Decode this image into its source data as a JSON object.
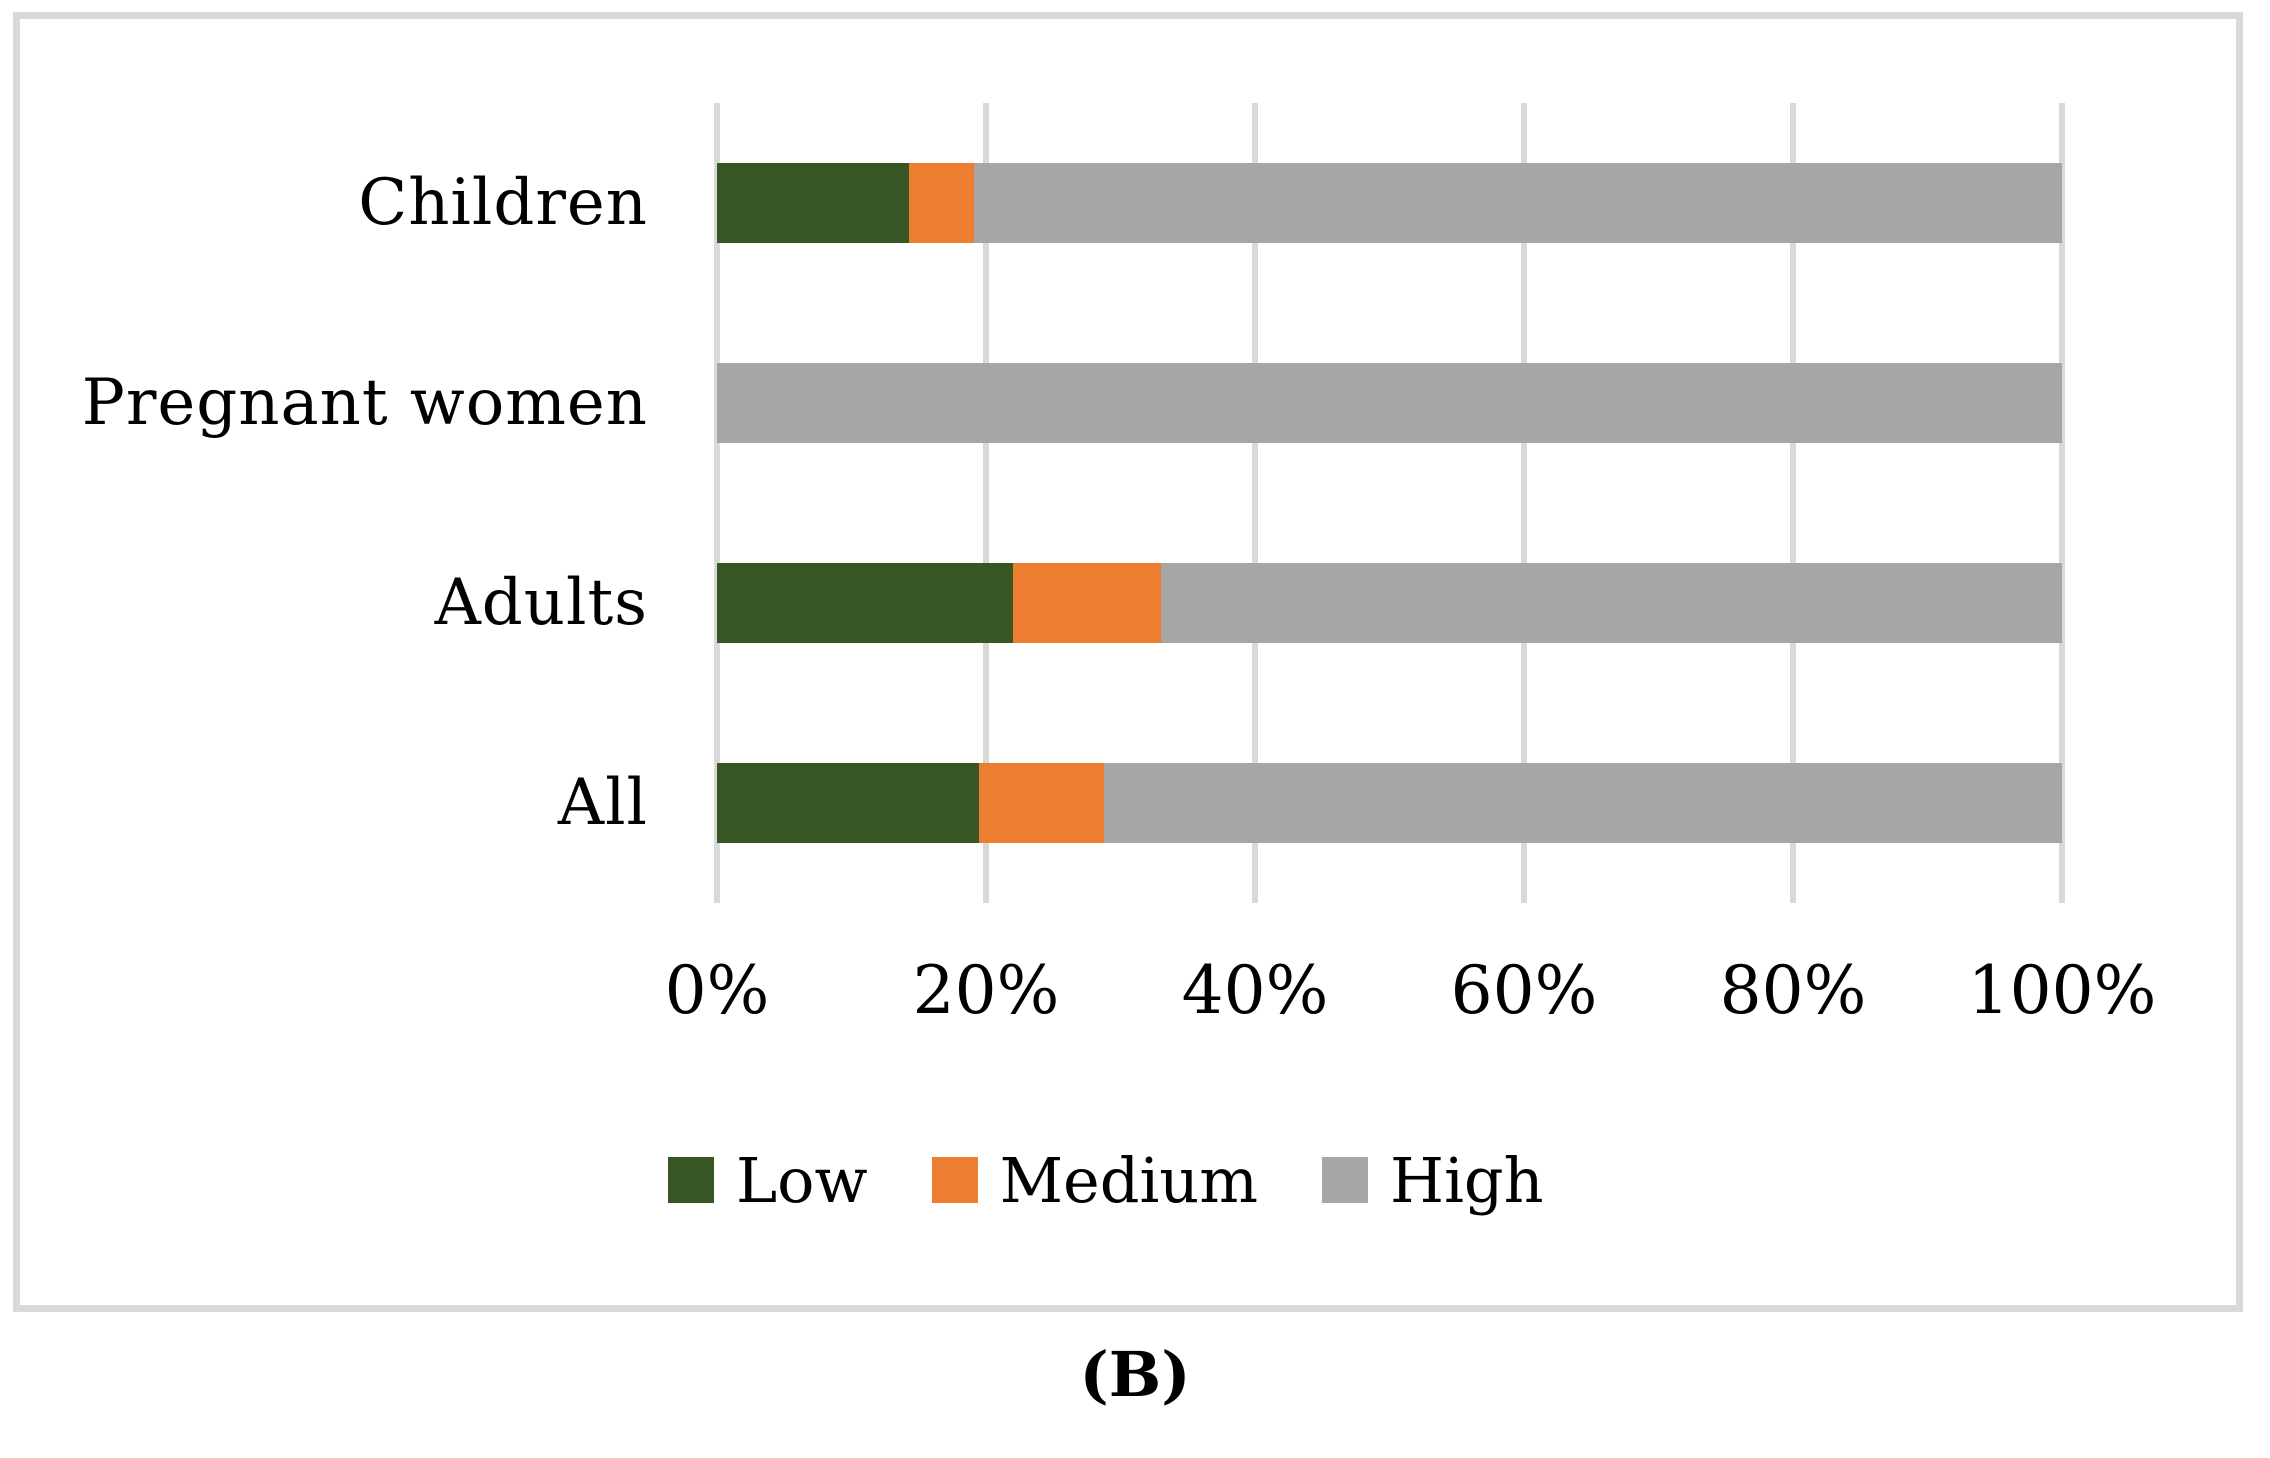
{
  "figure": {
    "caption": "(B)",
    "border_color": "#D9D9D9",
    "background": "#ffffff"
  },
  "chart_data": {
    "type": "bar",
    "orientation": "horizontal_stacked",
    "title": "",
    "xlabel": "",
    "ylabel": "",
    "categories": [
      "Children",
      "Pregnant women",
      "Adults",
      "All"
    ],
    "series": [
      {
        "name": "Low",
        "color": "#375623",
        "values": [
          14.3,
          0,
          22,
          19.5
        ]
      },
      {
        "name": "Medium",
        "color": "#ED7D31",
        "values": [
          4.8,
          0,
          11,
          9.3
        ]
      },
      {
        "name": "High",
        "color": "#A6A6A6",
        "values": [
          80.9,
          100,
          67,
          71.2
        ]
      }
    ],
    "xlim": [
      0,
      100
    ],
    "x_ticks": [
      "0%",
      "20%",
      "40%",
      "60%",
      "80%",
      "100%"
    ],
    "x_tick_values": [
      0,
      20,
      40,
      60,
      80,
      100
    ],
    "grid": true,
    "gridline_color": "#D9D9D9",
    "legend_position": "bottom",
    "legend_labels": [
      "Low",
      "Medium",
      "High"
    ]
  }
}
